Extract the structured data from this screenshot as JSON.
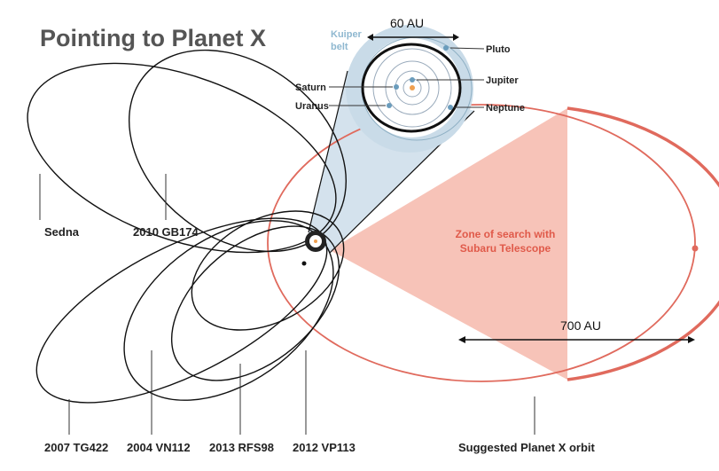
{
  "title": "Pointing to Planet X",
  "inset": {
    "kuiper_belt_line1": "Kuiper",
    "kuiper_belt_line2": "belt",
    "scale_label": "60 AU",
    "planets": [
      "Pluto",
      "Jupiter",
      "Neptune",
      "Saturn",
      "Uranus"
    ]
  },
  "zone": {
    "line1": "Zone of search with",
    "line2": "Subaru Telescope"
  },
  "scale_label_large": "700 AU",
  "objects": [
    "Sedna",
    "2010 GB174",
    "2007 TG422",
    "2004 VN112",
    "2013 RFS98",
    "2012 VP113"
  ],
  "planet_x_label": "Suggested Planet X orbit",
  "colors": {
    "planet_x_orbit": "#e06a5d",
    "search_zone": "#f6b8ab",
    "kuiper_belt": "#c9dbe8",
    "kuiper_label": "#8fb8d0",
    "zone_text": "#e05a4a",
    "sun": "#f0a050",
    "planet": "#6a9cbc"
  }
}
